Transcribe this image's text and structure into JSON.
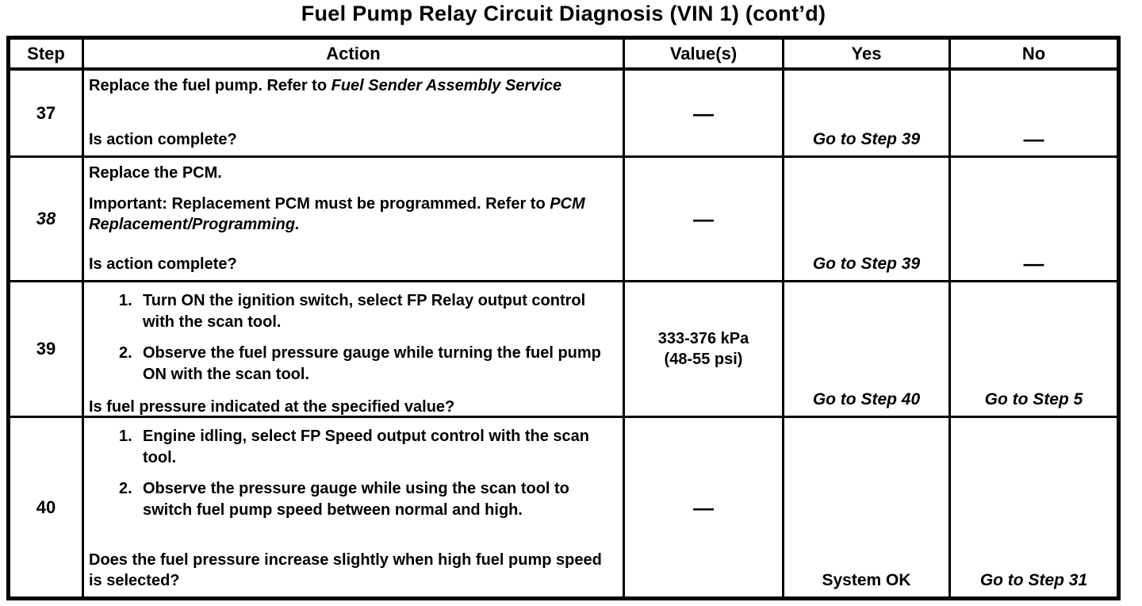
{
  "title": "Fuel Pump Relay Circuit Diagnosis (VIN 1) (cont’d)",
  "table": {
    "headers": [
      "Step",
      "Action",
      "Value(s)",
      "Yes",
      "No"
    ],
    "rows": [
      {
        "step": "37",
        "step_style": "normal",
        "action_blocks": [
          {
            "type": "para",
            "segments": [
              {
                "t": "Replace the fuel pump. Refer to ",
                "s": "n"
              },
              {
                "t": "Fuel Sender Assembly Service",
                "s": "i"
              }
            ]
          }
        ],
        "question": "Is action complete?",
        "value": {
          "lines": [
            "—"
          ],
          "style": "n"
        },
        "yes": {
          "text": "Go to Step 39",
          "style": "i"
        },
        "no": {
          "text": "—",
          "style": "n"
        }
      },
      {
        "step": "38",
        "step_style": "italic",
        "action_blocks": [
          {
            "type": "para",
            "segments": [
              {
                "t": "Replace the PCM.",
                "s": "n"
              }
            ]
          },
          {
            "type": "para",
            "segments": [
              {
                "t": "Important:",
                "s": "b"
              },
              {
                "t": " Replacement PCM must be programmed. Refer to ",
                "s": "n"
              },
              {
                "t": "PCM Replacement/Programming.",
                "s": "i"
              }
            ]
          }
        ],
        "question": "Is action complete?",
        "value": {
          "lines": [
            "—"
          ],
          "style": "n"
        },
        "yes": {
          "text": "Go to Step 39",
          "style": "i"
        },
        "no": {
          "text": "—",
          "style": "n"
        }
      },
      {
        "step": "39",
        "step_style": "normal",
        "action_blocks": [
          {
            "type": "list",
            "items": [
              "Turn ON the ignition switch, select FP Relay output control with the scan tool.",
              "Observe the fuel pressure gauge while turning the fuel pump ON with the scan tool."
            ]
          }
        ],
        "question": "Is fuel pressure indicated at the specified value?",
        "value": {
          "lines": [
            "333-376 kPa",
            "(48-55 psi)"
          ],
          "style": "n"
        },
        "yes": {
          "text": "Go to Step 40",
          "style": "i"
        },
        "no": {
          "text": "Go to Step 5",
          "style": "i"
        }
      },
      {
        "step": "40",
        "step_style": "normal",
        "action_blocks": [
          {
            "type": "list",
            "items": [
              "Engine idling, select FP Speed output control with the scan tool.",
              "Observe the pressure gauge while using the scan tool to switch fuel pump speed between normal and high."
            ]
          }
        ],
        "question": "Does the fuel pressure increase slightly when high fuel pump speed is selected?",
        "value": {
          "lines": [
            "—"
          ],
          "style": "n"
        },
        "yes": {
          "text": "System OK",
          "style": "n"
        },
        "no": {
          "text": "Go to Step 31",
          "style": "i"
        }
      }
    ]
  }
}
